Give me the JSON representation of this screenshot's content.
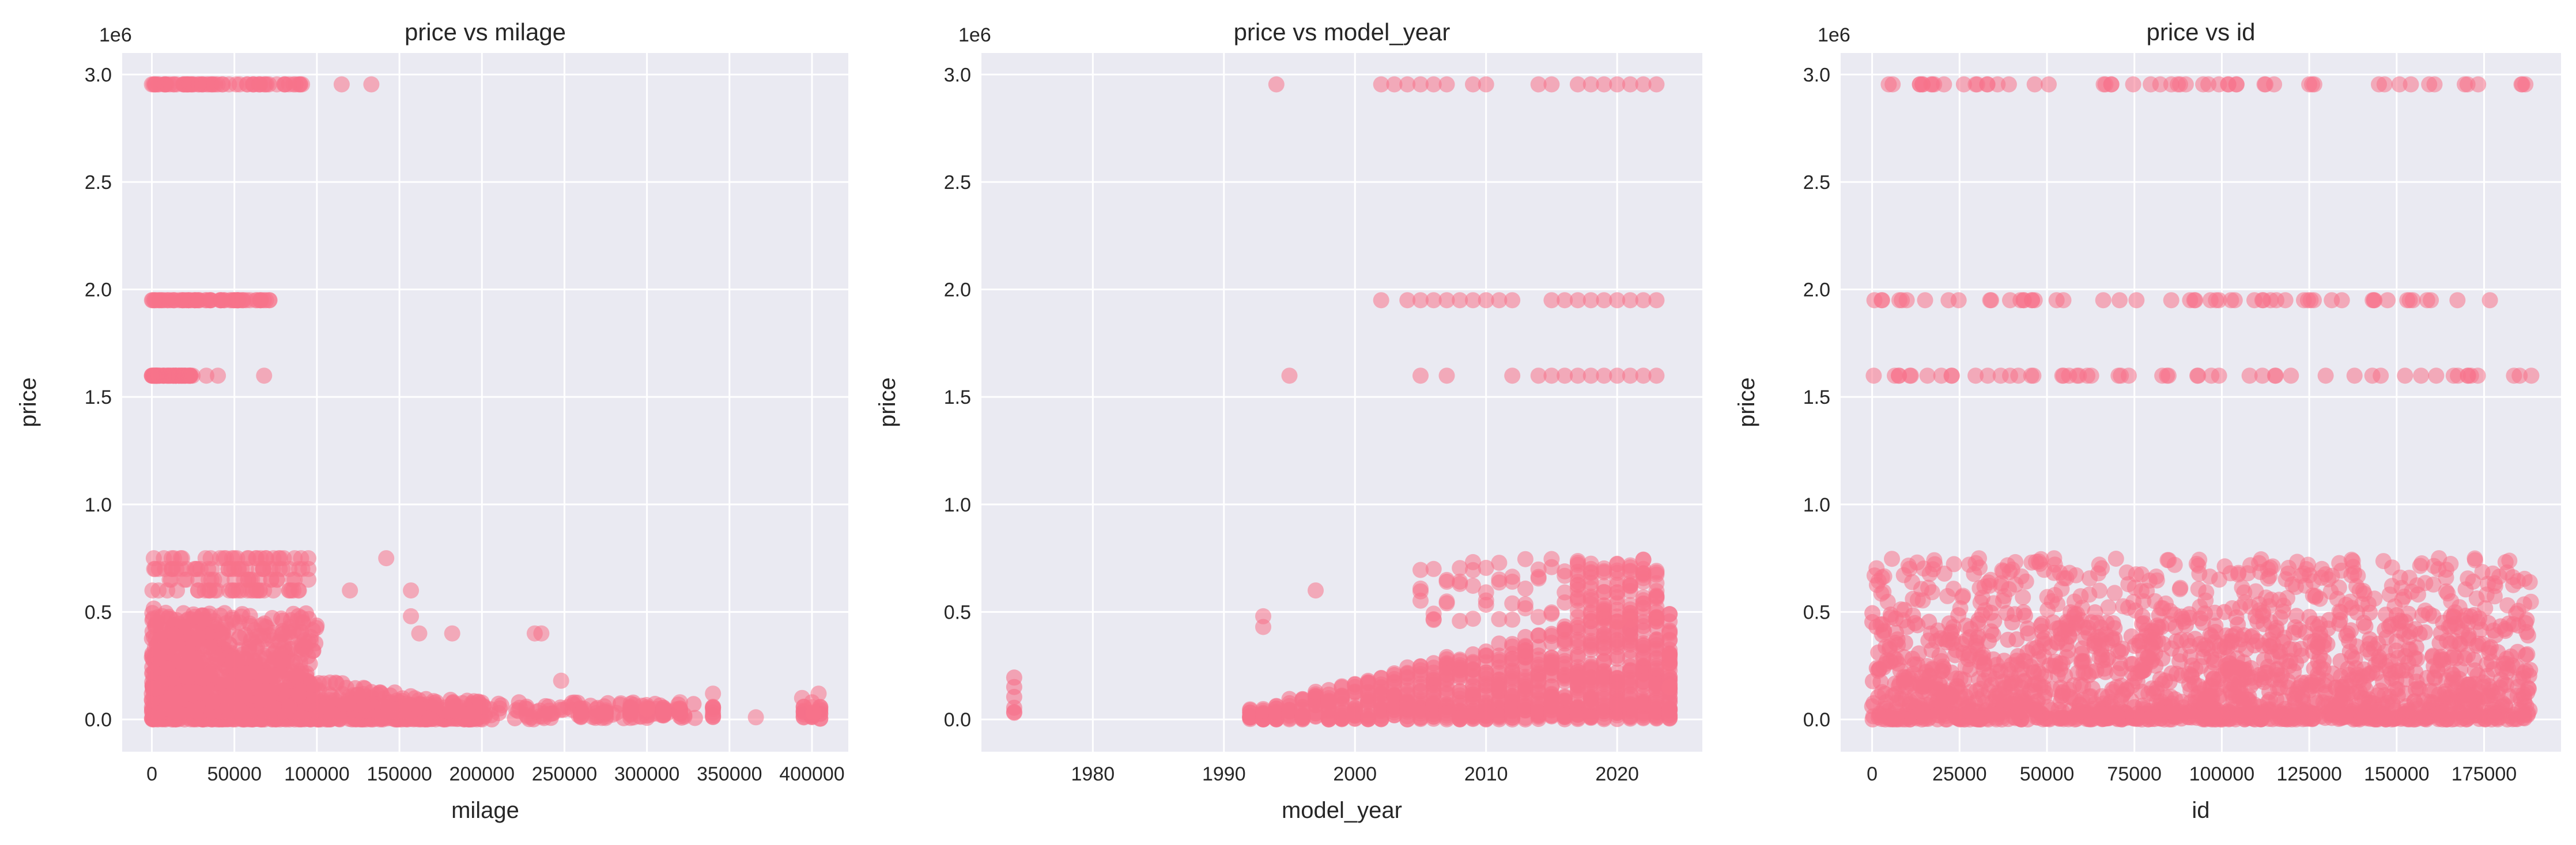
{
  "figure": {
    "point_color": "#f7728a",
    "background": "#eaeaf2",
    "grid_color": "#ffffff"
  },
  "chart_data": [
    {
      "type": "scatter",
      "name": "price-vs-milage",
      "title": "price vs milage",
      "xlabel": "milage",
      "ylabel": "price",
      "y_offset": "1e6",
      "xlim": [
        -18000,
        422000
      ],
      "ylim": [
        -0.15,
        3.1
      ],
      "xticks": [
        0,
        50000,
        100000,
        150000,
        200000,
        250000,
        300000,
        350000,
        400000
      ],
      "xtick_labels": [
        "0",
        "50000",
        "100000",
        "150000",
        "200000",
        "250000",
        "300000",
        "350000",
        "400000"
      ],
      "yticks": [
        0.0,
        0.5,
        1.0,
        1.5,
        2.0,
        2.5,
        3.0
      ],
      "ytick_labels": [
        "0.0",
        "0.5",
        "1.0",
        "1.5",
        "2.0",
        "2.5",
        "3.0"
      ],
      "price_levels": [
        2.954,
        1.95,
        1.599
      ],
      "level_ranges": [
        {
          "y": 2.954,
          "xmin": 0,
          "xmax": 95000,
          "extra_x": [
            115000,
            133000
          ]
        },
        {
          "y": 1.95,
          "xmin": 0,
          "xmax": 75000,
          "extra_x": []
        },
        {
          "y": 1.599,
          "xmin": 0,
          "xmax": 25000,
          "extra_x": [
            33000,
            40000,
            68000
          ]
        }
      ],
      "outliers_x": [
        {
          "x": 120000,
          "y": 0.6
        },
        {
          "x": 142000,
          "y": 0.75
        },
        {
          "x": 157000,
          "y": 0.6
        },
        {
          "x": 157000,
          "y": 0.48
        },
        {
          "x": 162000,
          "y": 0.4
        },
        {
          "x": 182000,
          "y": 0.4
        },
        {
          "x": 232000,
          "y": 0.4
        },
        {
          "x": 236000,
          "y": 0.4
        },
        {
          "x": 248000,
          "y": 0.18
        },
        {
          "x": 300000,
          "y": 0.05
        },
        {
          "x": 320000,
          "y": 0.08
        },
        {
          "x": 340000,
          "y": 0.12
        },
        {
          "x": 366000,
          "y": 0.01
        },
        {
          "x": 394000,
          "y": 0.1
        },
        {
          "x": 400000,
          "y": 0.08
        },
        {
          "x": 404000,
          "y": 0.12
        },
        {
          "x": 401000,
          "y": 0.03
        }
      ]
    },
    {
      "type": "scatter",
      "name": "price-vs-model-year",
      "title": "price vs model_year",
      "xlabel": "model_year",
      "ylabel": "price",
      "y_offset": "1e6",
      "xlim": [
        1971.5,
        2026.5
      ],
      "ylim": [
        -0.15,
        3.1
      ],
      "xticks": [
        1980,
        1990,
        2000,
        2010,
        2020
      ],
      "xtick_labels": [
        "1980",
        "1990",
        "2000",
        "2010",
        "2020"
      ],
      "yticks": [
        0.0,
        0.5,
        1.0,
        1.5,
        2.0,
        2.5,
        3.0
      ],
      "ytick_labels": [
        "0.0",
        "0.5",
        "1.0",
        "1.5",
        "2.0",
        "2.5",
        "3.0"
      ],
      "years_2954": [
        1994,
        2002,
        2003,
        2004,
        2005,
        2006,
        2007,
        2009,
        2010,
        2014,
        2015,
        2017,
        2018,
        2019,
        2020,
        2021,
        2022,
        2023
      ],
      "years_1950": [
        2002,
        2004,
        2005,
        2006,
        2007,
        2008,
        2009,
        2010,
        2011,
        2012,
        2015,
        2016,
        2017,
        2018,
        2019,
        2020,
        2021,
        2022,
        2023
      ],
      "years_1599": [
        1995,
        2005,
        2007,
        2012,
        2014,
        2015,
        2016,
        2017,
        2018,
        2019,
        2020,
        2021,
        2022,
        2023
      ],
      "low_years": [
        1974,
        1992,
        1993,
        1994,
        1995,
        1996,
        1997,
        1998,
        1999,
        2000,
        2001,
        2002,
        2003,
        2004,
        2005,
        2006,
        2007,
        2008,
        2009,
        2010,
        2011,
        2012,
        2013,
        2014,
        2015,
        2016,
        2017,
        2018,
        2019,
        2020,
        2021,
        2022,
        2023,
        2024
      ]
    },
    {
      "type": "scatter",
      "name": "price-vs-id",
      "title": "price vs id",
      "xlabel": "id",
      "ylabel": "price",
      "y_offset": "1e6",
      "xlim": [
        -9000,
        197000
      ],
      "ylim": [
        -0.15,
        3.1
      ],
      "xticks": [
        0,
        25000,
        50000,
        75000,
        100000,
        125000,
        150000,
        175000
      ],
      "xtick_labels": [
        "0",
        "25000",
        "50000",
        "75000",
        "100000",
        "125000",
        "150000",
        "175000"
      ],
      "yticks": [
        0.0,
        0.5,
        1.0,
        1.5,
        2.0,
        2.5,
        3.0
      ],
      "ytick_labels": [
        "0.0",
        "0.5",
        "1.0",
        "1.5",
        "2.0",
        "2.5",
        "3.0"
      ],
      "id_range": [
        0,
        188532
      ],
      "price_levels": [
        2.954,
        1.95,
        1.599
      ]
    }
  ]
}
